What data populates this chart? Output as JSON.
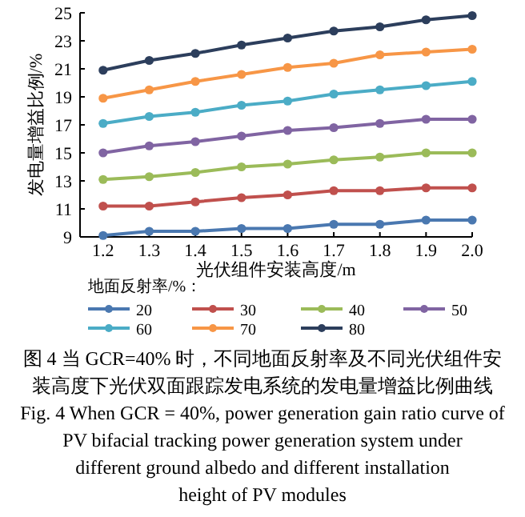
{
  "chart_data": {
    "type": "line",
    "xlabel": "光伏组件安装高度/m",
    "ylabel": "发电量增益比例/%",
    "legend_title": "地面反射率/%：",
    "x": [
      1.2,
      1.3,
      1.4,
      1.5,
      1.6,
      1.7,
      1.8,
      1.9,
      2.0
    ],
    "xlim": [
      1.15,
      2.0
    ],
    "xticks": [
      {
        "value": 1.2,
        "label": "1.2"
      },
      {
        "value": 1.3,
        "label": "1.3"
      },
      {
        "value": 1.4,
        "label": "1.4"
      },
      {
        "value": 1.5,
        "label": "1.5"
      },
      {
        "value": 1.6,
        "label": "1.6"
      },
      {
        "value": 1.7,
        "label": "1.7"
      },
      {
        "value": 1.8,
        "label": "1.8"
      },
      {
        "value": 1.9,
        "label": "1.9"
      },
      {
        "value": 2.0,
        "label": "2.0"
      }
    ],
    "ylim": [
      9,
      25
    ],
    "yticks": [
      9,
      11,
      13,
      15,
      17,
      19,
      21,
      23,
      25
    ],
    "marker": "circle",
    "legend": "bottom",
    "series": [
      {
        "name": "20",
        "color": "#4a78b0",
        "values": [
          9.1,
          9.4,
          9.4,
          9.6,
          9.6,
          9.9,
          9.9,
          10.2,
          10.2
        ]
      },
      {
        "name": "30",
        "color": "#c0504d",
        "values": [
          11.2,
          11.2,
          11.5,
          11.8,
          12.0,
          12.3,
          12.3,
          12.5,
          12.5
        ]
      },
      {
        "name": "40",
        "color": "#9bbb59",
        "values": [
          13.1,
          13.3,
          13.6,
          14.0,
          14.2,
          14.5,
          14.7,
          15.0,
          15.0
        ]
      },
      {
        "name": "50",
        "color": "#8064a2",
        "values": [
          15.0,
          15.5,
          15.8,
          16.2,
          16.6,
          16.8,
          17.1,
          17.4,
          17.4
        ]
      },
      {
        "name": "60",
        "color": "#4bacc6",
        "values": [
          17.1,
          17.6,
          17.9,
          18.4,
          18.7,
          19.2,
          19.5,
          19.8,
          20.1
        ]
      },
      {
        "name": "70",
        "color": "#f79646",
        "values": [
          18.9,
          19.5,
          20.1,
          20.6,
          21.1,
          21.4,
          22.0,
          22.2,
          22.4
        ]
      },
      {
        "name": "80",
        "color": "#2c3e5c",
        "values": [
          20.9,
          21.6,
          22.1,
          22.7,
          23.2,
          23.7,
          24.0,
          24.5,
          24.8
        ]
      }
    ],
    "annotations": [
      "图 4 当 GCR=40% 时，不同地面反射率及不同光伏组件安",
      "装高度下光伏双面跟踪发电系统的发电量增益比例曲线",
      "Fig. 4 When GCR = 40%, power generation gain ratio curve of",
      "PV bifacial tracking power generation system under",
      "different ground albedo and different installation",
      "height of PV modules"
    ]
  }
}
